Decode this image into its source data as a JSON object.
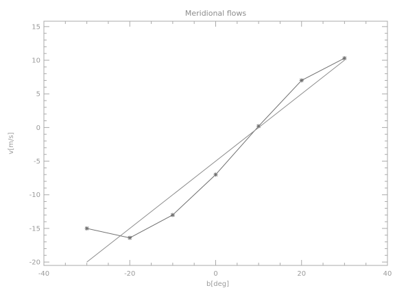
{
  "chart_data": {
    "type": "line",
    "title": "Meridional flows",
    "xlabel": "b[deg]",
    "ylabel": "v[m/s]",
    "xlim": [
      -40,
      40
    ],
    "ylim": [
      -20.5,
      15.8
    ],
    "xticks": [
      -40,
      -20,
      0,
      20,
      40
    ],
    "yticks": [
      -20,
      -15,
      -10,
      -5,
      0,
      5,
      10,
      15
    ],
    "grid": false,
    "series": [
      {
        "marker": "asterisk",
        "color": "#6e6e6e",
        "x": [
          -30,
          -20,
          -10,
          0,
          10,
          20,
          30
        ],
        "y": [
          -15.0,
          -16.4,
          -13.0,
          -7.0,
          0.2,
          7.0,
          10.3
        ]
      },
      {
        "marker": "none",
        "color": "#8c8c8c",
        "x": [
          -30,
          30
        ],
        "y": [
          -20.0,
          10.0
        ]
      }
    ]
  }
}
